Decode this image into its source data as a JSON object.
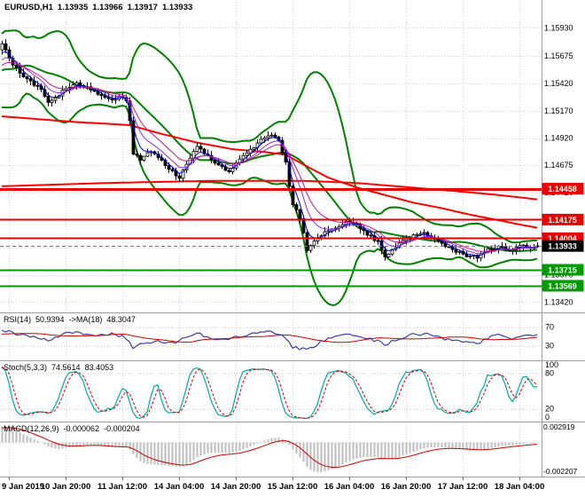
{
  "app": {
    "background": "#FFFFFF"
  },
  "header": {
    "symbol_tf": "EURUSD,H1",
    "open": "1.13935",
    "high": "1.13966",
    "low": "1.13917",
    "close": "1.13933"
  },
  "indicators": {
    "rsi": {
      "name": "RSI(14)",
      "value": "50.9394",
      "ma_name": "->MA(18)",
      "ma_value": "48.3047",
      "levels": [
        70,
        30
      ],
      "color": "#3D3DA3",
      "ma_color": "#CC0000",
      "waypoints": [
        [
          -30,
          55
        ],
        [
          -20,
          62
        ],
        [
          -10,
          50
        ],
        [
          -5,
          58
        ],
        [
          0,
          62
        ],
        [
          5,
          55
        ],
        [
          10,
          48
        ],
        [
          13,
          40
        ],
        [
          18,
          55
        ],
        [
          21,
          60
        ],
        [
          27,
          52
        ],
        [
          31,
          56
        ],
        [
          35,
          48
        ],
        [
          37,
          25
        ],
        [
          40,
          35
        ],
        [
          45,
          40
        ],
        [
          48,
          35
        ],
        [
          52,
          48
        ],
        [
          55,
          56
        ],
        [
          60,
          46
        ],
        [
          64,
          42
        ],
        [
          68,
          52
        ],
        [
          73,
          60
        ],
        [
          76,
          62
        ],
        [
          79,
          50
        ],
        [
          82,
          28
        ],
        [
          86,
          20
        ],
        [
          90,
          38
        ],
        [
          94,
          48
        ],
        [
          97,
          54
        ],
        [
          100,
          50
        ],
        [
          103,
          44
        ],
        [
          106,
          40
        ],
        [
          108,
          32
        ],
        [
          111,
          42
        ],
        [
          114,
          50
        ],
        [
          117,
          55
        ],
        [
          120,
          56
        ],
        [
          123,
          48
        ],
        [
          126,
          44
        ],
        [
          129,
          40
        ],
        [
          132,
          36
        ],
        [
          135,
          38
        ],
        [
          138,
          50
        ],
        [
          141,
          54
        ],
        [
          144,
          46
        ],
        [
          147,
          53
        ],
        [
          150,
          51
        ],
        [
          151,
          50.9
        ]
      ]
    },
    "stoch": {
      "name": "Stoch(5,3,3)",
      "k_value": "74.5614",
      "d_value": "83.4053",
      "levels": [
        80,
        20
      ],
      "axis_labels": [
        100,
        80,
        20,
        0
      ],
      "k_color": "#00A8A8",
      "d_color": "#CC0000"
    },
    "macd": {
      "name": "MACD(12,26,9)",
      "value": "-0.000062",
      "signal_value": "-0.000204",
      "axis_top": "0.002919",
      "axis_bottom": "-0.002207",
      "hist_color": "#BDBDBD",
      "signal_color": "#CC0000",
      "scale_max": 0.0015,
      "scale_min": -0.0025
    }
  },
  "chart_data": {
    "type": "candlestick",
    "symbol": "EURUSD",
    "timeframe": "H1",
    "ohlc_current": {
      "open": 1.13935,
      "high": 1.13966,
      "low": 1.13917,
      "close": 1.13933
    },
    "bars_visible": 152,
    "pre_history_bars": 30,
    "price_scale": {
      "max": 1.16185,
      "min": 1.13325,
      "ticks": [
        1.1593,
        1.15675,
        1.1542,
        1.1517,
        1.1492,
        1.14675,
        1.1442,
        1.1417,
        1.1392,
        1.1367,
        1.1342
      ]
    },
    "close_waypoints": [
      [
        -30,
        1.1495
      ],
      [
        -26,
        1.1555
      ],
      [
        -22,
        1.151
      ],
      [
        -18,
        1.1565
      ],
      [
        -14,
        1.1525
      ],
      [
        -10,
        1.1572
      ],
      [
        -6,
        1.154
      ],
      [
        -1,
        1.1572
      ],
      [
        0,
        1.1578
      ],
      [
        2,
        1.1565
      ],
      [
        5,
        1.1551
      ],
      [
        8,
        1.1544
      ],
      [
        11,
        1.1536
      ],
      [
        13,
        1.1524
      ],
      [
        15,
        1.1529
      ],
      [
        18,
        1.1538
      ],
      [
        21,
        1.1543
      ],
      [
        24,
        1.1538
      ],
      [
        27,
        1.1532
      ],
      [
        30,
        1.1527
      ],
      [
        33,
        1.153
      ],
      [
        35,
        1.1526
      ],
      [
        36,
        1.1508
      ],
      [
        37,
        1.1477
      ],
      [
        39,
        1.1473
      ],
      [
        42,
        1.148
      ],
      [
        45,
        1.1471
      ],
      [
        48,
        1.1461
      ],
      [
        50,
        1.1456
      ],
      [
        52,
        1.1469
      ],
      [
        55,
        1.1483
      ],
      [
        58,
        1.1476
      ],
      [
        61,
        1.1468
      ],
      [
        64,
        1.1462
      ],
      [
        67,
        1.1472
      ],
      [
        70,
        1.1481
      ],
      [
        73,
        1.1492
      ],
      [
        76,
        1.1495
      ],
      [
        78,
        1.1489
      ],
      [
        80,
        1.147
      ],
      [
        81,
        1.1447
      ],
      [
        82,
        1.1431
      ],
      [
        84,
        1.1419
      ],
      [
        86,
        1.139
      ],
      [
        88,
        1.1398
      ],
      [
        91,
        1.1406
      ],
      [
        94,
        1.1411
      ],
      [
        97,
        1.1416
      ],
      [
        100,
        1.1412
      ],
      [
        103,
        1.1404
      ],
      [
        106,
        1.1397
      ],
      [
        108,
        1.1384
      ],
      [
        110,
        1.139
      ],
      [
        113,
        1.1398
      ],
      [
        116,
        1.1403
      ],
      [
        119,
        1.1406
      ],
      [
        122,
        1.14
      ],
      [
        125,
        1.1394
      ],
      [
        128,
        1.1389
      ],
      [
        131,
        1.1385
      ],
      [
        134,
        1.1383
      ],
      [
        137,
        1.139
      ],
      [
        140,
        1.1393
      ],
      [
        143,
        1.1389
      ],
      [
        146,
        1.1394
      ],
      [
        149,
        1.1391
      ],
      [
        151,
        1.13933
      ]
    ],
    "bollinger": {
      "period": 20,
      "deviation": 2.5,
      "color": "#008000"
    },
    "fast_mas": [
      {
        "period": 4,
        "color": "#0000D0"
      },
      {
        "period": 8,
        "color": "#8A2BE2"
      },
      {
        "period": 13,
        "color": "#C71585"
      }
    ],
    "trend_mas": [
      {
        "color": "#FF0000",
        "width": 2,
        "waypoints": [
          [
            -30,
            1.1445
          ],
          [
            0,
            1.1448
          ],
          [
            30,
            1.1451
          ],
          [
            60,
            1.1453
          ],
          [
            85,
            1.1453
          ],
          [
            100,
            1.1451
          ],
          [
            115,
            1.1447
          ],
          [
            130,
            1.1443
          ],
          [
            140,
            1.144
          ],
          [
            151,
            1.1436
          ]
        ]
      },
      {
        "color": "#FF0000",
        "width": 2,
        "waypoints": [
          [
            -30,
            1.152
          ],
          [
            0,
            1.1512
          ],
          [
            20,
            1.1507
          ],
          [
            36,
            1.1504
          ],
          [
            45,
            1.1496
          ],
          [
            55,
            1.1488
          ],
          [
            65,
            1.1482
          ],
          [
            75,
            1.1479
          ],
          [
            80,
            1.1477
          ],
          [
            85,
            1.1468
          ],
          [
            92,
            1.1456
          ],
          [
            100,
            1.1447
          ],
          [
            108,
            1.144
          ],
          [
            116,
            1.1433
          ],
          [
            124,
            1.1428
          ],
          [
            132,
            1.1422
          ],
          [
            140,
            1.1417
          ],
          [
            146,
            1.1413
          ],
          [
            151,
            1.141
          ]
        ]
      }
    ],
    "levels": [
      {
        "price": 1.14458,
        "color": "#E60000",
        "width": 3,
        "kind": "resistance"
      },
      {
        "price": 1.14175,
        "color": "#E60000",
        "width": 2,
        "kind": "resistance"
      },
      {
        "price": 1.14004,
        "color": "#E60000",
        "width": 2,
        "kind": "resistance"
      },
      {
        "price": 1.13715,
        "color": "#009900",
        "width": 2,
        "kind": "support"
      },
      {
        "price": 1.13569,
        "color": "#009900",
        "width": 2,
        "kind": "support"
      }
    ],
    "current_price": {
      "value": 1.13933,
      "badge_color": "#000000"
    },
    "time_labels": [
      "9 Jan 2019",
      "10 Jan 20:00",
      "11 Jan 12:00",
      "14 Jan 04:00",
      "14 Jan 20:00",
      "15 Jan 12:00",
      "16 Jan 04:00",
      "16 Jan 20:00",
      "17 Jan 12:00",
      "18 Jan 04:00"
    ],
    "time_label_bar_indices": [
      2,
      18,
      34,
      50,
      66,
      82,
      98,
      114,
      130,
      146
    ]
  }
}
